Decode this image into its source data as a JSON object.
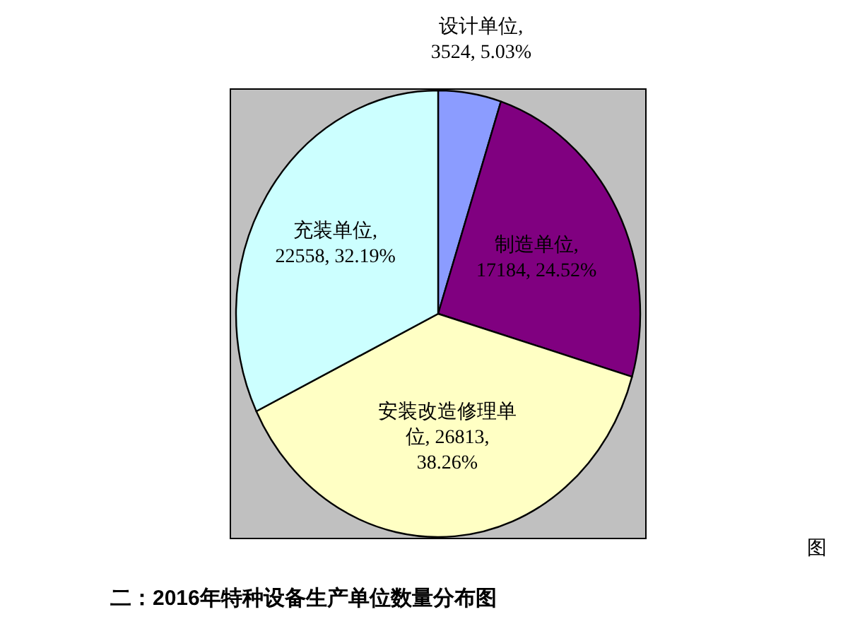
{
  "chart_data": {
    "type": "pie",
    "title": "二：2016年特种设备生产单位数量分布图",
    "categories": [
      "设计单位",
      "制造单位",
      "安装改造修理单位",
      "充装单位"
    ],
    "values": [
      3524,
      17184,
      26813,
      22558
    ],
    "value_labels": [
      ",\n3524, 5.03%",
      ",\n17184, 24.52%",
      ", 26813,\n38.26%",
      ",\n22558, 32.19%"
    ],
    "colors": [
      "#8b9cff",
      "#800080",
      "#ffffc4",
      "#ccffff"
    ],
    "annotations": [
      "图"
    ]
  }
}
